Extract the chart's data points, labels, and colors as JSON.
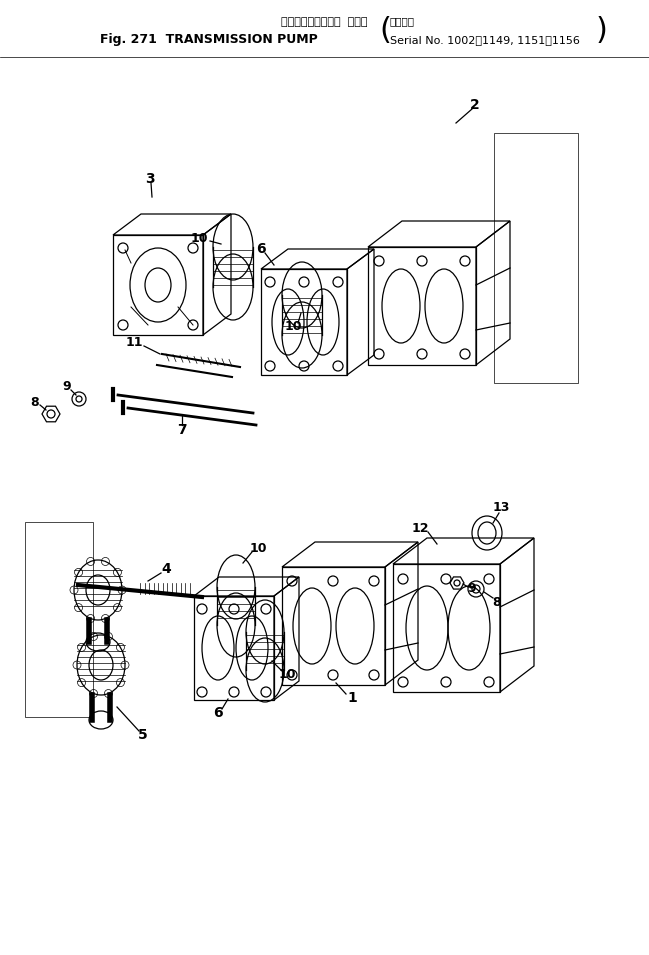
{
  "title_jp": "トランスミッション  ポンプ",
  "title_serial_jp": "適用号機",
  "title_en": "Fig. 271  TRANSMISSION PUMP",
  "title_serial": "Serial No. 1002～1149, 1151～1156",
  "bg_color": "#ffffff",
  "line_color": "#000000"
}
